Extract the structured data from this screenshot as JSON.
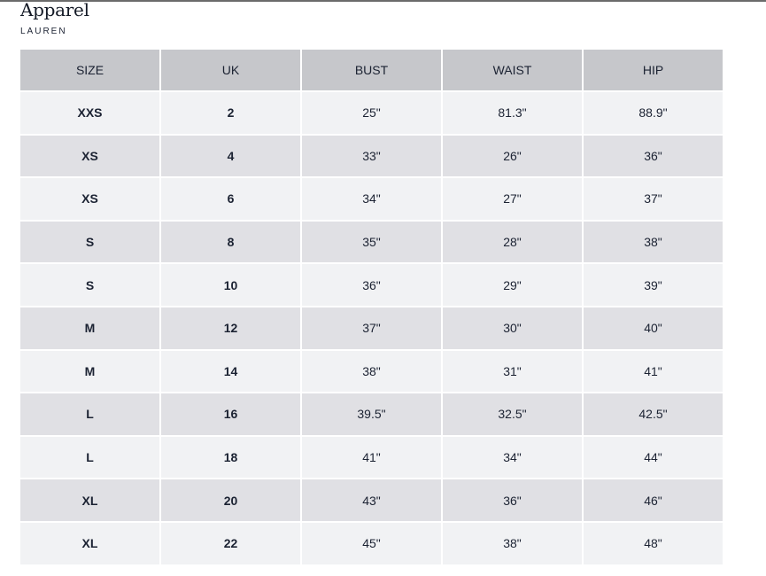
{
  "title": "Apparel",
  "brand": "LAUREN",
  "table": {
    "headers": [
      "SIZE",
      "UK",
      "BUST",
      "WAIST",
      "HIP"
    ],
    "rows": [
      [
        "XXS",
        "2",
        "25\"",
        "81.3\"",
        "88.9\""
      ],
      [
        "XS",
        "4",
        "33\"",
        "26\"",
        "36\""
      ],
      [
        "XS",
        "6",
        "34\"",
        "27\"",
        "37\""
      ],
      [
        "S",
        "8",
        "35\"",
        "28\"",
        "38\""
      ],
      [
        "S",
        "10",
        "36\"",
        "29\"",
        "39\""
      ],
      [
        "M",
        "12",
        "37\"",
        "30\"",
        "40\""
      ],
      [
        "M",
        "14",
        "38\"",
        "31\"",
        "41\""
      ],
      [
        "L",
        "16",
        "39.5\"",
        "32.5\"",
        "42.5\""
      ],
      [
        "L",
        "18",
        "41\"",
        "34\"",
        "44\""
      ],
      [
        "XL",
        "20",
        "43\"",
        "36\"",
        "46\""
      ],
      [
        "XL",
        "22",
        "45\"",
        "38\"",
        "48\""
      ]
    ]
  }
}
